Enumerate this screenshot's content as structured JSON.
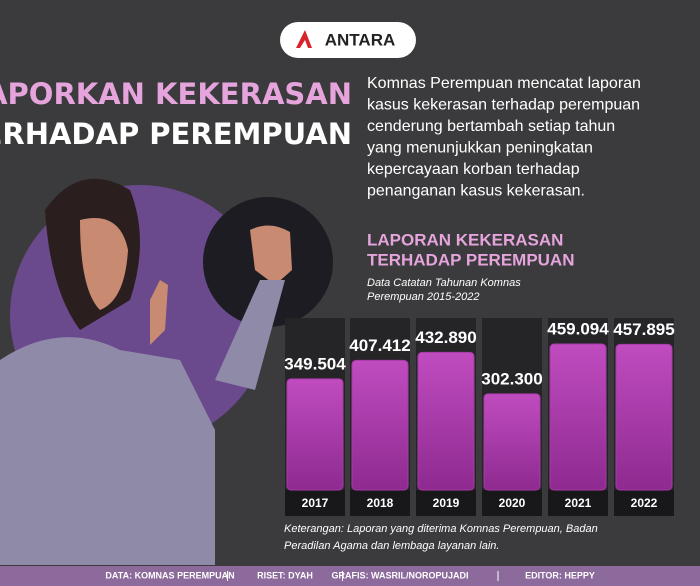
{
  "logo": "ANTARA",
  "headline": [
    "LAPORKAN KEKERASAN",
    "TERHADAP PEREMPUAN"
  ],
  "intro": [
    "Komnas Perempuan mencatat laporan",
    "kasus kekerasan terhadap perempuan",
    "cenderung bertambah setiap tahun",
    "yang menunjukkan peningkatan",
    "kepercayaan korban terhadap",
    "penanganan kasus kekerasan."
  ],
  "chart_data": {
    "type": "bar",
    "title": [
      "LAPORAN KEKERASAN",
      "TERHADAP PEREMPUAN"
    ],
    "subtitle": [
      "Data Catatan Tahunan Komnas",
      "Perempuan 2015-2022"
    ],
    "categories": [
      "2017",
      "2018",
      "2019",
      "2020",
      "2021",
      "2022"
    ],
    "values": [
      349504,
      407412,
      432890,
      302300,
      459094,
      457895
    ],
    "value_labels": [
      "349.504",
      "407.412",
      "432.890",
      "302.300",
      "459.094",
      "457.895"
    ],
    "color": "#a83aa8",
    "note": [
      "Keterangan: Laporan yang diterima Komnas Perempuan, Badan",
      "Peradilan Agama dan lembaga layanan lain."
    ]
  },
  "footer": [
    "DATA: KOMNAS PEREMPUAN",
    "RISET: DYAH",
    "GRAFIS: WASRIL/NOROPUJADI",
    "EDITOR: HEPPY"
  ]
}
